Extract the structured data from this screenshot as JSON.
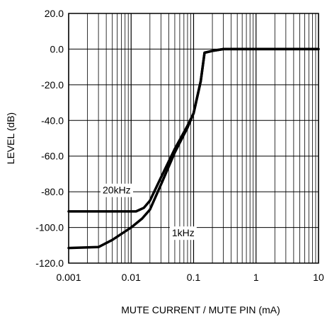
{
  "chart_data": {
    "type": "line",
    "xscale": "log",
    "xlabel": "MUTE CURRENT / MUTE PIN (mA)",
    "ylabel": "LEVEL (dB)",
    "xlim": [
      0.001,
      10
    ],
    "ylim": [
      -120,
      20
    ],
    "grid": true,
    "x_tick_labels": [
      "0.001",
      "0.01",
      "0.1",
      "1",
      "10"
    ],
    "x_tick_values": [
      0.001,
      0.01,
      0.1,
      1,
      10
    ],
    "y_tick_labels": [
      "20.0",
      "0.0",
      "-20.0",
      "-40.0",
      "-60.0",
      "-80.0",
      "-100.0",
      "-120.0"
    ],
    "y_tick_values": [
      20,
      0,
      -20,
      -40,
      -60,
      -80,
      -100,
      -120
    ],
    "series": [
      {
        "name": "20kHz",
        "points": [
          [
            0.001,
            -91
          ],
          [
            0.005,
            -91
          ],
          [
            0.012,
            -91
          ],
          [
            0.016,
            -89
          ],
          [
            0.02,
            -85
          ],
          [
            0.03,
            -72
          ],
          [
            0.05,
            -56
          ],
          [
            0.08,
            -43
          ],
          [
            0.1,
            -36
          ],
          [
            0.13,
            -18
          ],
          [
            0.15,
            -2
          ],
          [
            0.2,
            -1
          ],
          [
            0.3,
            0
          ],
          [
            10,
            0
          ]
        ]
      },
      {
        "name": "1kHz",
        "points": [
          [
            0.001,
            -111.5
          ],
          [
            0.003,
            -111
          ],
          [
            0.005,
            -107
          ],
          [
            0.01,
            -100
          ],
          [
            0.015,
            -95
          ],
          [
            0.02,
            -90
          ],
          [
            0.03,
            -76
          ],
          [
            0.05,
            -58
          ],
          [
            0.08,
            -44
          ],
          [
            0.1,
            -36
          ],
          [
            0.13,
            -18
          ],
          [
            0.15,
            -2
          ],
          [
            0.2,
            -1
          ],
          [
            0.3,
            0
          ],
          [
            10,
            0
          ]
        ]
      }
    ],
    "annotations": [
      {
        "text": "20kHz",
        "x": 0.0035,
        "y": -81
      },
      {
        "text": "1kHz",
        "x": 0.045,
        "y": -105
      }
    ]
  }
}
